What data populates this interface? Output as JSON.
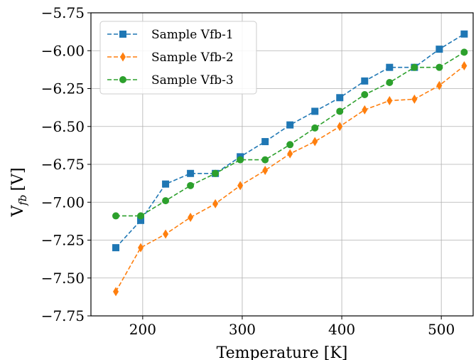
{
  "chart_data": {
    "type": "line",
    "xlabel": "Temperature [K]",
    "ylabel": "V",
    "ylabel_subscript": "fb",
    "ylabel_unit": "[V]",
    "xlim": [
      148,
      532
    ],
    "ylim": [
      -7.75,
      -5.75
    ],
    "x_ticks": [
      200,
      300,
      400,
      500
    ],
    "y_ticks": [
      -5.75,
      -6.0,
      -6.25,
      -6.5,
      -6.75,
      -7.0,
      -7.25,
      -7.5,
      -7.75
    ],
    "x_tick_labels": [
      "200",
      "300",
      "400",
      "500"
    ],
    "y_tick_labels": [
      "−5.75",
      "−6.00",
      "−6.25",
      "−6.50",
      "−6.75",
      "−7.00",
      "−7.25",
      "−7.50",
      "−7.75"
    ],
    "grid": true,
    "legend_position": "upper-left",
    "x": [
      173,
      198,
      223,
      248,
      273,
      298,
      323,
      348,
      373,
      398,
      423,
      448,
      473,
      498,
      523
    ],
    "series": [
      {
        "name": "Sample Vfb-1",
        "color": "#1f77b4",
        "marker": "square",
        "line_style": "dashed",
        "values": [
          -7.3,
          -7.12,
          -6.88,
          -6.81,
          -6.81,
          -6.7,
          -6.6,
          -6.49,
          -6.4,
          -6.31,
          -6.2,
          -6.11,
          -6.11,
          -5.99,
          -5.89
        ]
      },
      {
        "name": "Sample Vfb-2",
        "color": "#ff7f0e",
        "marker": "thin-diamond",
        "line_style": "dashed",
        "values": [
          -7.59,
          -7.3,
          -7.21,
          -7.1,
          -7.01,
          -6.89,
          -6.79,
          -6.68,
          -6.6,
          -6.5,
          -6.39,
          -6.33,
          -6.32,
          -6.23,
          -6.1
        ]
      },
      {
        "name": "Sample Vfb-3",
        "color": "#2ca02c",
        "marker": "circle",
        "line_style": "dashed",
        "values": [
          -7.09,
          -7.09,
          -6.99,
          -6.89,
          -6.81,
          -6.72,
          -6.72,
          -6.62,
          -6.51,
          -6.4,
          -6.29,
          -6.21,
          -6.11,
          -6.11,
          -6.01
        ]
      }
    ]
  }
}
